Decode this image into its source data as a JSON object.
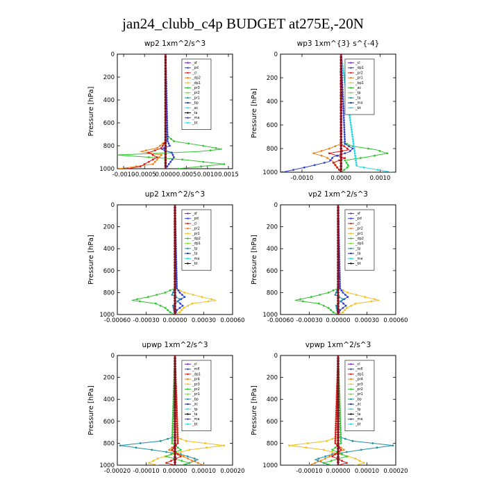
{
  "title": "jan24_clubb_c4p  BUDGET at275E,-20N",
  "colors": {
    "purple": "#7b2fbf",
    "blue": "#2f3fd0",
    "red": "#d41a1a",
    "orange": "#f07f10",
    "yellow": "#f0c020",
    "green": "#2ec42e",
    "lime": "#7fd62a",
    "teal": "#1f8fa3",
    "navy": "#1a2a8a",
    "cyan": "#20d8e6",
    "black": "#000000"
  },
  "chart_data": [
    {
      "type": "line",
      "title": "wp2   1xm^2/s^3",
      "ylabel": "Pressure [hPa]",
      "ylim": [
        1000,
        0
      ],
      "xlim": [
        -0.00115,
        0.0016
      ],
      "xticks": [
        -0.001,
        -0.0005,
        0.0,
        0.0005,
        0.001,
        0.0015
      ],
      "xticklabels": [
        "-0.0010",
        "-0.0005",
        "0.0000",
        "0.0005",
        "0.0010",
        "0.0015"
      ],
      "yticks": [
        0,
        200,
        400,
        600,
        800,
        1000
      ],
      "legend": [
        "_sf",
        "_pd",
        "_cl",
        "_dp2",
        "_dp1",
        "_pr3",
        "_pr2",
        "_pr1",
        "_bp",
        "_ac",
        "_ta",
        "_ma",
        "_bt"
      ],
      "series": [
        {
          "name": "_pr1",
          "color": "green",
          "p": [
            0,
            700,
            760,
            800,
            830,
            850,
            880,
            920,
            960,
            1000
          ],
          "x": [
            0,
            0,
            0.0002,
            0.0009,
            0.00135,
            0.0008,
            -0.0012,
            0.0004,
            0.0014,
            0.0003
          ]
        },
        {
          "name": "_dp1",
          "color": "orange",
          "p": [
            0,
            760,
            820,
            850,
            880,
            920,
            960,
            1000
          ],
          "x": [
            0,
            0,
            -0.0002,
            -0.0006,
            -0.0001,
            -0.0002,
            -0.0003,
            -0.0011
          ]
        },
        {
          "name": "_dp2",
          "color": "red",
          "p": [
            0,
            760,
            820,
            860,
            900,
            940,
            980,
            1000
          ],
          "x": [
            0,
            0,
            -0.0001,
            -0.0004,
            -0.0002,
            -0.0004,
            -0.0006,
            -0.0009
          ]
        },
        {
          "name": "_bp",
          "color": "blue",
          "p": [
            0,
            760,
            800,
            830,
            860,
            900,
            950,
            1000
          ],
          "x": [
            0,
            5e-05,
            0.0001,
            -0.0001,
            0.00015,
            0.0002,
            0.0001,
            0
          ]
        },
        {
          "name": "_bt",
          "color": "cyan",
          "p": [
            0,
            1000
          ],
          "x": [
            0,
            0
          ]
        },
        {
          "name": "_sf",
          "color": "purple",
          "p": [
            0,
            1000
          ],
          "x": [
            0,
            0
          ]
        }
      ]
    },
    {
      "type": "line",
      "title": "wp3   1xm^{3} s^{-4}",
      "ylabel": "Pressure [hPa]",
      "ylim": [
        1000,
        0
      ],
      "xlim": [
        -0.00155,
        0.0014
      ],
      "xticks": [
        -0.001,
        0.0,
        0.001
      ],
      "xticklabels": [
        "-0.0010",
        "0.0000",
        "0.0010"
      ],
      "yticks": [
        0,
        200,
        400,
        600,
        800,
        1000
      ],
      "legend": [
        "_cl",
        "_dp1",
        "_pr2",
        "_pr1",
        "_bp1",
        "_ac",
        "_tp",
        "_ta",
        "_ma",
        "_bt"
      ],
      "series": [
        {
          "name": "_ac",
          "color": "green",
          "p": [
            0,
            740,
            780,
            810,
            840,
            870,
            900,
            950,
            1000
          ],
          "x": [
            0,
            0,
            0.0003,
            0.0009,
            0.00118,
            0.0007,
            0.0001,
            0.0002,
            0
          ]
        },
        {
          "name": "_pr2",
          "color": "orange",
          "p": [
            0,
            760,
            800,
            840,
            870,
            910,
            960,
            1000
          ],
          "x": [
            0,
            0,
            -0.0003,
            -0.0007,
            -0.0004,
            -0.0002,
            -0.0001,
            0
          ]
        },
        {
          "name": "_dp1",
          "color": "red",
          "p": [
            0,
            760,
            810,
            840,
            880,
            920,
            960,
            1000
          ],
          "x": [
            0,
            0,
            0.0002,
            -0.0003,
            0.0001,
            -0.0002,
            -0.0001,
            0
          ]
        },
        {
          "name": "_bp1",
          "color": "blue",
          "p": [
            0,
            760,
            800,
            830,
            870,
            910,
            950,
            1000
          ],
          "x": [
            0,
            0.0001,
            0.0003,
            0.0002,
            -0.0002,
            -0.0003,
            -0.0008,
            -0.0015
          ]
        },
        {
          "name": "_bt",
          "color": "cyan",
          "p": [
            0,
            950,
            1000
          ],
          "x": [
            0,
            0.0004,
            0.0013
          ]
        },
        {
          "name": "_cl",
          "color": "purple",
          "p": [
            0,
            1000
          ],
          "x": [
            0,
            0
          ]
        }
      ]
    },
    {
      "type": "line",
      "title": "up2   1xm^2/s^3",
      "ylabel": "Pressure [hPa]",
      "ylim": [
        1000,
        0
      ],
      "xlim": [
        -0.0006,
        0.0006
      ],
      "xticks": [
        -0.0006,
        -0.0003,
        0.0,
        0.0003,
        0.0006
      ],
      "xticklabels": [
        "-0.00060",
        "-0.00030",
        "0.00000",
        "0.00030",
        "0.00060"
      ],
      "yticks": [
        0,
        200,
        400,
        600,
        800,
        1000
      ],
      "legend": [
        "_sf",
        "_pd",
        "_cl",
        "_pr2",
        "_pr1",
        "_dp2",
        "_dp1",
        "_tp",
        "_ta",
        "_ma",
        "_bt"
      ],
      "series": [
        {
          "name": "_pr1",
          "color": "yellow",
          "p": [
            0,
            760,
            800,
            840,
            870,
            900,
            940,
            980,
            1000
          ],
          "x": [
            0,
            0,
            0.0001,
            0.00028,
            0.00043,
            0.00018,
            9e-05,
            5e-05,
            0
          ]
        },
        {
          "name": "_dp1",
          "color": "green",
          "p": [
            0,
            760,
            800,
            840,
            870,
            900,
            940,
            980,
            1000
          ],
          "x": [
            0,
            0,
            -0.0001,
            -0.00028,
            -0.00045,
            -0.0002,
            -0.0001,
            -5e-05,
            0
          ]
        },
        {
          "name": "_tp",
          "color": "blue",
          "p": [
            0,
            760,
            800,
            840,
            880,
            920,
            960,
            1000
          ],
          "x": [
            0,
            2e-05,
            5e-05,
            0.0001,
            3e-05,
            8e-05,
            2e-05,
            0
          ]
        },
        {
          "name": "_dp2",
          "color": "teal",
          "p": [
            0,
            760,
            820,
            860,
            920,
            1000
          ],
          "x": [
            0,
            0,
            -3e-05,
            5e-05,
            -2e-05,
            0
          ]
        },
        {
          "name": "_sf",
          "color": "purple",
          "p": [
            0,
            1000
          ],
          "x": [
            0,
            0
          ]
        },
        {
          "name": "_cl",
          "color": "red",
          "p": [
            0,
            1000
          ],
          "x": [
            0,
            0
          ]
        }
      ]
    },
    {
      "type": "line",
      "title": "vp2   1xm^2/s^3",
      "ylabel": "Pressure [hPa]",
      "ylim": [
        1000,
        0
      ],
      "xlim": [
        -0.0006,
        0.0006
      ],
      "xticks": [
        -0.0006,
        -0.0003,
        0.0,
        0.0003,
        0.0006
      ],
      "xticklabels": [
        "-0.00060",
        "-0.00030",
        "0.00000",
        "0.00030",
        "0.00060"
      ],
      "yticks": [
        0,
        200,
        400,
        600,
        800,
        1000
      ],
      "legend": [
        "_sf",
        "_pd",
        "_cl",
        "_pr2",
        "_pr1",
        "_dp2",
        "_dp1",
        "_tp",
        "_ta",
        "_ma",
        "_bt"
      ],
      "series": [
        {
          "name": "_pr1",
          "color": "yellow",
          "p": [
            0,
            760,
            800,
            840,
            870,
            900,
            940,
            980,
            1000
          ],
          "x": [
            0,
            0,
            0.0001,
            0.00028,
            0.00043,
            0.00018,
            9e-05,
            5e-05,
            0
          ]
        },
        {
          "name": "_dp1",
          "color": "green",
          "p": [
            0,
            760,
            800,
            840,
            870,
            900,
            940,
            980,
            1000
          ],
          "x": [
            0,
            0,
            -0.0001,
            -0.00028,
            -0.00045,
            -0.0002,
            -0.0001,
            -5e-05,
            0
          ]
        },
        {
          "name": "_tp",
          "color": "blue",
          "p": [
            0,
            760,
            800,
            840,
            880,
            920,
            960,
            1000
          ],
          "x": [
            0,
            2e-05,
            5e-05,
            0.0001,
            3e-05,
            8e-05,
            2e-05,
            0
          ]
        },
        {
          "name": "_dp2",
          "color": "teal",
          "p": [
            0,
            760,
            820,
            860,
            920,
            1000
          ],
          "x": [
            0,
            0,
            -3e-05,
            5e-05,
            -2e-05,
            0
          ]
        },
        {
          "name": "_sf",
          "color": "purple",
          "p": [
            0,
            1000
          ],
          "x": [
            0,
            0
          ]
        },
        {
          "name": "_cl",
          "color": "red",
          "p": [
            0,
            1000
          ],
          "x": [
            0,
            0
          ]
        }
      ]
    },
    {
      "type": "line",
      "title": "upwp   1xm^2/s^3",
      "ylabel": "Pressure [hPa]",
      "ylim": [
        1000,
        0
      ],
      "xlim": [
        -0.0002,
        0.0002
      ],
      "xticks": [
        -0.0002,
        -0.0001,
        0.0,
        0.0001,
        0.0002
      ],
      "xticklabels": [
        "-0.00020",
        "-0.00010",
        "0.00000",
        "0.00010",
        "0.00020"
      ],
      "yticks": [
        0,
        200,
        400,
        600,
        800,
        1000
      ],
      "legend": [
        "_cl",
        "_mfl",
        "_dp1",
        "_pr4",
        "_pr3",
        "_pr2",
        "_pr1",
        "_bp",
        "_ac",
        "_tp",
        "_ta",
        "_ma",
        "_bt"
      ],
      "series": [
        {
          "name": "_pr2",
          "color": "yellow",
          "p": [
            0,
            740,
            780,
            820,
            860,
            900,
            940,
            980,
            1000
          ],
          "x": [
            0,
            0,
            4e-05,
            0.00017,
            5e-05,
            -1e-05,
            -6e-05,
            -9e-05,
            -6e-05
          ]
        },
        {
          "name": "_tp",
          "color": "teal",
          "p": [
            0,
            740,
            780,
            820,
            860,
            900,
            950,
            1000
          ],
          "x": [
            0,
            0,
            -5e-05,
            -0.00019,
            -8e-05,
            2e-05,
            8e-05,
            3e-05
          ]
        },
        {
          "name": "_ac",
          "color": "green",
          "p": [
            0,
            800,
            860,
            920,
            980,
            1000
          ],
          "x": [
            0,
            -1e-05,
            2e-05,
            -3e-05,
            5e-05,
            2e-05
          ]
        },
        {
          "name": "_pr1",
          "color": "orange",
          "p": [
            0,
            800,
            860,
            920,
            960,
            1000
          ],
          "x": [
            0,
            1e-05,
            -2e-05,
            3e-05,
            6e-05,
            0.0001
          ]
        },
        {
          "name": "_dp1",
          "color": "red",
          "p": [
            0,
            800,
            860,
            920,
            980,
            1000
          ],
          "x": [
            0,
            1e-05,
            -1e-05,
            2e-05,
            -3e-05,
            0
          ]
        },
        {
          "name": "_cl",
          "color": "purple",
          "p": [
            0,
            1000
          ],
          "x": [
            0,
            0
          ]
        }
      ]
    },
    {
      "type": "line",
      "title": "vpwp   1xm^2/s^3",
      "ylabel": "Pressure [hPa]",
      "ylim": [
        1000,
        0
      ],
      "xlim": [
        -0.0002,
        0.0002
      ],
      "xticks": [
        -0.0001,
        0.0,
        0.0001,
        0.0002
      ],
      "xticklabels": [
        "-0.00010",
        "0.00000",
        "0.00010",
        "0.00020"
      ],
      "yticks": [
        0,
        200,
        400,
        600,
        800,
        1000
      ],
      "legend": [
        "_cl",
        "_mfl",
        "_dp1",
        "_pr4",
        "_pr3",
        "_pr2",
        "_pr1",
        "_bp",
        "_ac",
        "_tp",
        "_ta",
        "_ma",
        "_bt"
      ],
      "series": [
        {
          "name": "_pr2",
          "color": "yellow",
          "p": [
            0,
            740,
            780,
            820,
            860,
            900,
            940,
            980,
            1000
          ],
          "x": [
            0,
            0,
            -4e-05,
            -0.00017,
            -5e-05,
            1e-05,
            6e-05,
            9e-05,
            6e-05
          ]
        },
        {
          "name": "_tp",
          "color": "teal",
          "p": [
            0,
            740,
            780,
            820,
            860,
            900,
            950,
            1000
          ],
          "x": [
            0,
            0,
            5e-05,
            0.00019,
            8e-05,
            -2e-05,
            -8e-05,
            -3e-05
          ]
        },
        {
          "name": "_ac",
          "color": "green",
          "p": [
            0,
            800,
            860,
            920,
            980,
            1000
          ],
          "x": [
            0,
            1e-05,
            -2e-05,
            3e-05,
            -5e-05,
            -2e-05
          ]
        },
        {
          "name": "_pr1",
          "color": "orange",
          "p": [
            0,
            800,
            860,
            920,
            960,
            1000
          ],
          "x": [
            0,
            -1e-05,
            2e-05,
            -3e-05,
            -6e-05,
            -0.0001
          ]
        },
        {
          "name": "_dp1",
          "color": "red",
          "p": [
            0,
            800,
            860,
            920,
            980,
            1000
          ],
          "x": [
            0,
            -1e-05,
            1e-05,
            -2e-05,
            3e-05,
            0
          ]
        },
        {
          "name": "_cl",
          "color": "purple",
          "p": [
            0,
            1000
          ],
          "x": [
            0,
            0
          ]
        }
      ]
    }
  ]
}
